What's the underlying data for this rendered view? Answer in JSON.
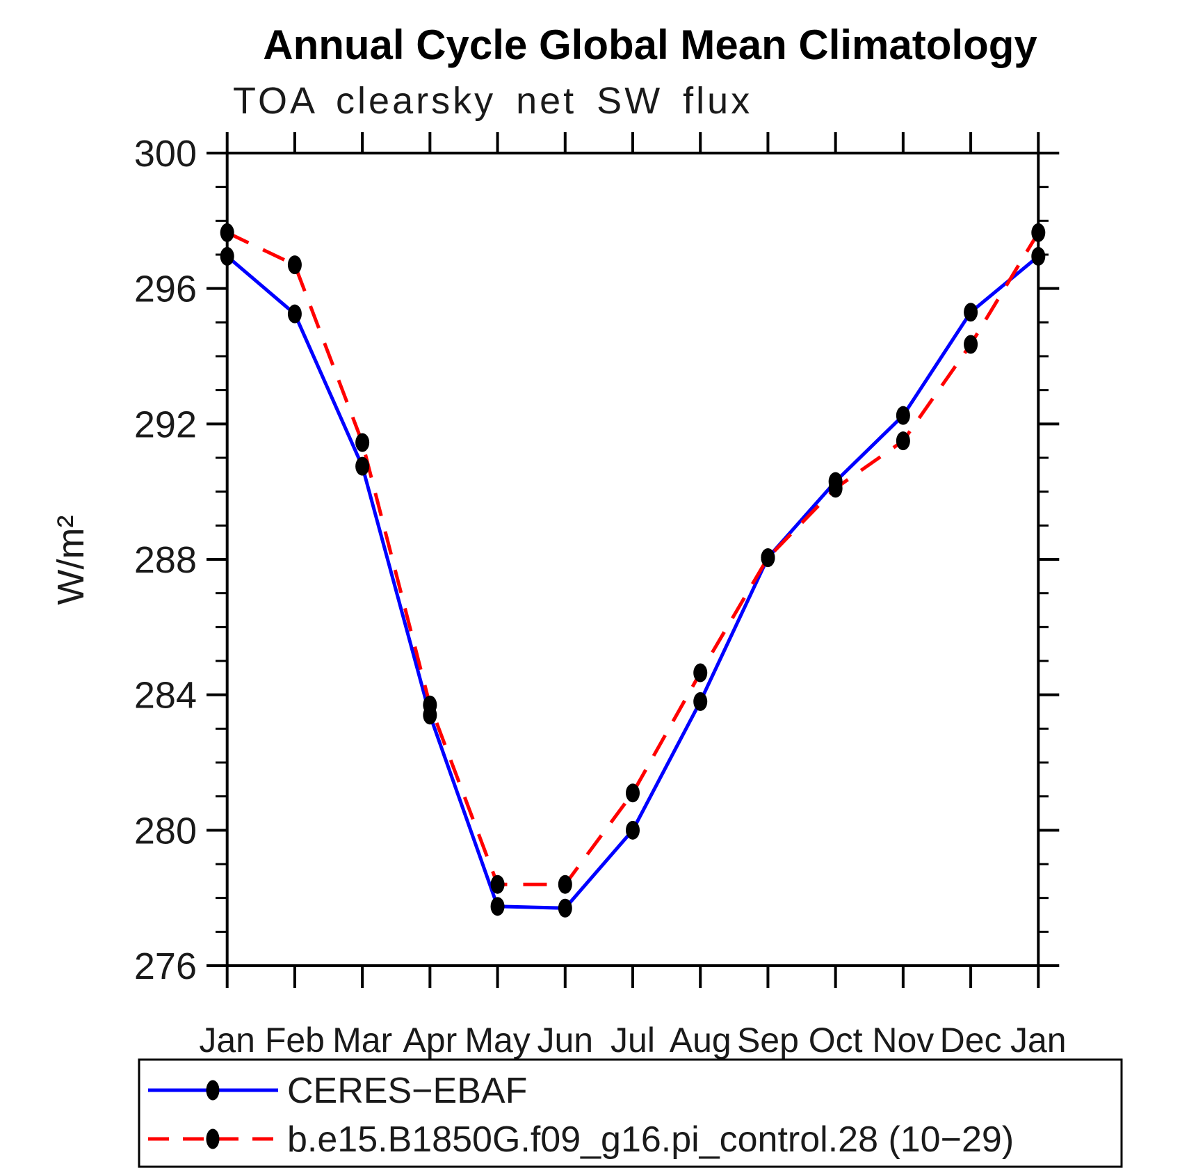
{
  "chart_data": {
    "type": "line",
    "title": "Annual Cycle Global Mean Climatology",
    "subtitle": "TOA clearsky net SW flux",
    "ylabel": "W/m²",
    "xlabel": "",
    "categories": [
      "Jan",
      "Feb",
      "Mar",
      "Apr",
      "May",
      "Jun",
      "Jul",
      "Aug",
      "Sep",
      "Oct",
      "Nov",
      "Dec",
      "Jan"
    ],
    "ylim": [
      276,
      300
    ],
    "ytick_major": [
      276,
      280,
      284,
      288,
      292,
      296,
      300
    ],
    "ytick_minor_step": 1,
    "grid": false,
    "legend_position": "bottom-left-box",
    "axis_color": "#000000",
    "marker_color": "#000000",
    "series": [
      {
        "name": "CERES−EBAF",
        "color": "#0000ff",
        "style": "solid",
        "marker": "filled-circle",
        "values": [
          296.95,
          295.25,
          290.75,
          283.4,
          277.75,
          277.7,
          280.0,
          283.8,
          288.05,
          290.3,
          292.25,
          295.3,
          296.95
        ]
      },
      {
        "name": "b.e15.B1850G.f09_g16.pi_control.28 (10−29)",
        "color": "#ff0000",
        "style": "dashed",
        "marker": "filled-circle",
        "values": [
          297.65,
          296.7,
          291.45,
          283.7,
          278.4,
          278.4,
          281.1,
          284.65,
          288.05,
          290.1,
          291.5,
          294.35,
          297.65
        ]
      }
    ]
  }
}
